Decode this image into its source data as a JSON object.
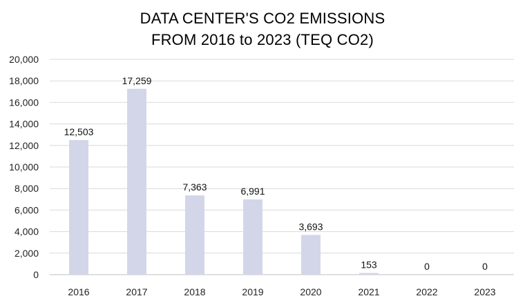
{
  "chart_data": {
    "type": "bar",
    "title_lines": [
      "DATA CENTER'S CO2 EMISSIONS",
      "FROM 2016 to 2023 (TEQ CO2)"
    ],
    "categories": [
      "2016",
      "2017",
      "2018",
      "2019",
      "2020",
      "2021",
      "2022",
      "2023"
    ],
    "values": [
      12503,
      17259,
      7363,
      6991,
      3693,
      153,
      0,
      0
    ],
    "data_labels": [
      "12,503",
      "17,259",
      "7,363",
      "6,991",
      "3,693",
      "153",
      "0",
      "0"
    ],
    "xlabel": "",
    "ylabel": "",
    "ylim": [
      0,
      20000
    ],
    "yticks": [
      0,
      2000,
      4000,
      6000,
      8000,
      10000,
      12000,
      14000,
      16000,
      18000,
      20000
    ],
    "ytick_labels": [
      "0",
      "2,000",
      "4,000",
      "6,000",
      "8,000",
      "10,000",
      "12,000",
      "14,000",
      "16,000",
      "18,000",
      "20,000"
    ],
    "grid": true,
    "legend": "none",
    "colors": {
      "bar": "#d3d6e8",
      "grid": "#d9d9d9",
      "axis": "#bfbfbf"
    }
  }
}
